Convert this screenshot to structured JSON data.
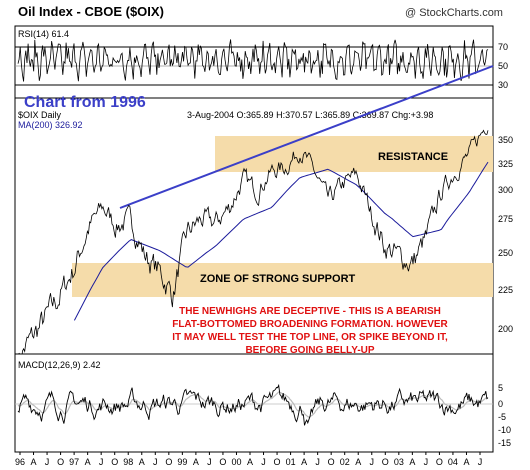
{
  "header": {
    "title": "Oil Index - CBOE ($OIX)",
    "copyright": "@ StockCharts.com",
    "subtitle_chart_from": "Chart from 1996"
  },
  "rsi_panel": {
    "label": "RSI(14) 61.4",
    "levels": [
      70,
      50,
      30
    ],
    "axis_labels": [
      "70",
      "50",
      "30"
    ]
  },
  "price_panel": {
    "symbol_label": "$OIX Daily",
    "ma_label": "MA(200) 326.92",
    "quote_line": "3-Aug-2004  O:365.89  H:370.57  L:365.89  C:369.87  Chg:+3.98",
    "resistance_label": "RESISTANCE",
    "support_label": "ZONE OF STRONG SUPPORT",
    "annotation_lines": [
      "THE NEWHIGHS ARE DECEPTIVE - THIS IS A BEARISH",
      "FLAT-BOTTOMED BROADENING FORMATION. HOWEVER",
      "IT MAY WELL TEST THE TOP LINE, OR SPIKE BEYOND IT,",
      "BEFORE GOING BELLY-UP"
    ],
    "y_ticks": [
      "350",
      "325",
      "300",
      "275",
      "250",
      "225",
      "200"
    ]
  },
  "macd_panel": {
    "label": "MACD(12,26,9) 2.42",
    "y_ticks": [
      "5",
      "0",
      "-5",
      "-10",
      "-15"
    ]
  },
  "x_axis_labels": [
    "96",
    "A",
    "J",
    "O",
    "97",
    "A",
    "J",
    "O",
    "98",
    "A",
    "J",
    "O",
    "99",
    "A",
    "J",
    "O",
    "00",
    "A",
    "J",
    "O",
    "01",
    "A",
    "J",
    "O",
    "02",
    "A",
    "J",
    "O",
    "03",
    "A",
    "J",
    "O",
    "04",
    "A",
    "J"
  ],
  "colors": {
    "zone_fill": "#f5dcaa",
    "trendline": "#3b3fc8",
    "ma_line": "#1c1c9c",
    "annotation_red": "#e01010",
    "chart_from_blue": "#3b3fc8",
    "price_line": "#000000"
  },
  "chart_data": {
    "type": "line",
    "title": "Oil Index - CBOE ($OIX)",
    "ylim": [
      175,
      375
    ],
    "price_series": {
      "name": "$OIX Daily",
      "dates": [
        "1996-04",
        "1996-07",
        "1996-10",
        "1997-01",
        "1997-04",
        "1997-07",
        "1997-10",
        "1998-01",
        "1998-04",
        "1998-07",
        "1998-10",
        "1999-01",
        "1999-04",
        "1999-07",
        "1999-10",
        "2000-01",
        "2000-04",
        "2000-07",
        "2000-10",
        "2001-01",
        "2001-04",
        "2001-07",
        "2001-10",
        "2002-01",
        "2002-04",
        "2002-07",
        "2002-10",
        "2003-01",
        "2003-04",
        "2003-07",
        "2003-10",
        "2004-01",
        "2004-04",
        "2004-08"
      ],
      "values": [
        183,
        195,
        208,
        222,
        240,
        268,
        285,
        270,
        275,
        248,
        238,
        222,
        265,
        275,
        272,
        285,
        310,
        300,
        318,
        322,
        340,
        318,
        290,
        305,
        315,
        282,
        255,
        248,
        243,
        262,
        298,
        318,
        335,
        370
      ]
    },
    "ma200_series": {
      "name": "MA(200) 326.92",
      "dates": [
        "1997-04",
        "1997-10",
        "1998-04",
        "1998-10",
        "1999-04",
        "1999-10",
        "2000-04",
        "2000-10",
        "2001-04",
        "2001-10",
        "2002-04",
        "2002-10",
        "2003-04",
        "2003-10",
        "2004-04",
        "2004-08"
      ],
      "values": [
        206,
        240,
        260,
        252,
        240,
        255,
        275,
        285,
        312,
        320,
        305,
        280,
        262,
        267,
        298,
        327
      ]
    },
    "zones": [
      {
        "label": "RESISTANCE",
        "low": 318,
        "high": 352
      },
      {
        "label": "ZONE OF STRONG SUPPORT",
        "low": 222,
        "high": 250
      }
    ],
    "rsi": {
      "label": "RSI(14) 61.4",
      "last": 61.4,
      "range": [
        20,
        80
      ]
    },
    "macd": {
      "label": "MACD(12,26,9) 2.42",
      "last": 2.42,
      "range": [
        -16,
        8
      ]
    }
  }
}
